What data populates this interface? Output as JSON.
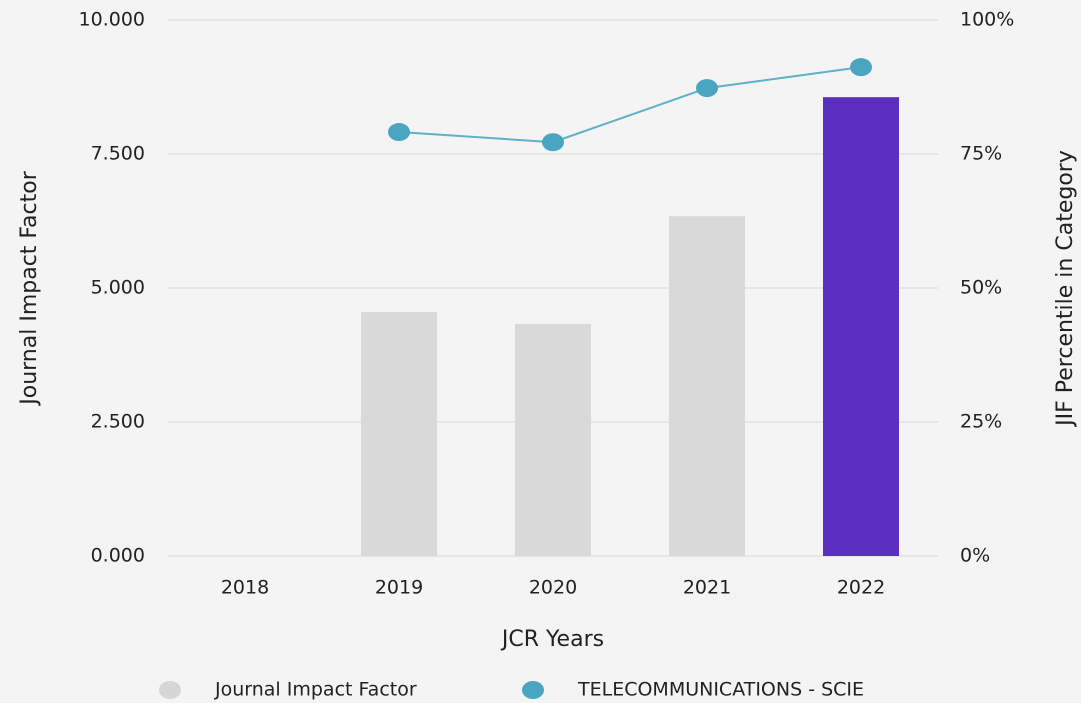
{
  "chart_data": {
    "type": "bar",
    "categories": [
      "2018",
      "2019",
      "2020",
      "2021",
      "2022"
    ],
    "x_label": "JCR Years",
    "y_label": "Journal Impact Factor",
    "y2_label": "JIF Percentile in Category",
    "series": [
      {
        "name": "Journal Impact Factor",
        "type": "bar",
        "color": "#d6d6d6",
        "colors": [
          "#d9d9d9",
          "#d9d9d9",
          "#d9d9d9",
          "#d9d9d9",
          "#5b2fc1"
        ],
        "values": [
          null,
          4.55,
          4.33,
          6.34,
          8.56
        ]
      },
      {
        "name": "TELECOMMUNICATIONS - SCIE",
        "type": "line",
        "axis": "y2",
        "color": "#4aa6c0",
        "line_color": "#5fb0c8",
        "values": [
          null,
          79.1,
          77.2,
          87.3,
          91.2
        ]
      }
    ],
    "ylim": [
      0,
      10
    ],
    "yticks": [
      {
        "value": 0,
        "label": "0.000"
      },
      {
        "value": 2.5,
        "label": "2.500"
      },
      {
        "value": 5,
        "label": "5.000"
      },
      {
        "value": 7.5,
        "label": "7.500"
      },
      {
        "value": 10,
        "label": "10.000"
      }
    ],
    "y2lim": [
      0,
      100
    ],
    "y2ticks": [
      {
        "value": 0,
        "label": "0%"
      },
      {
        "value": 25,
        "label": "25%"
      },
      {
        "value": 50,
        "label": "50%"
      },
      {
        "value": 75,
        "label": "75%"
      },
      {
        "value": 100,
        "label": "100%"
      }
    ],
    "grid": true
  }
}
